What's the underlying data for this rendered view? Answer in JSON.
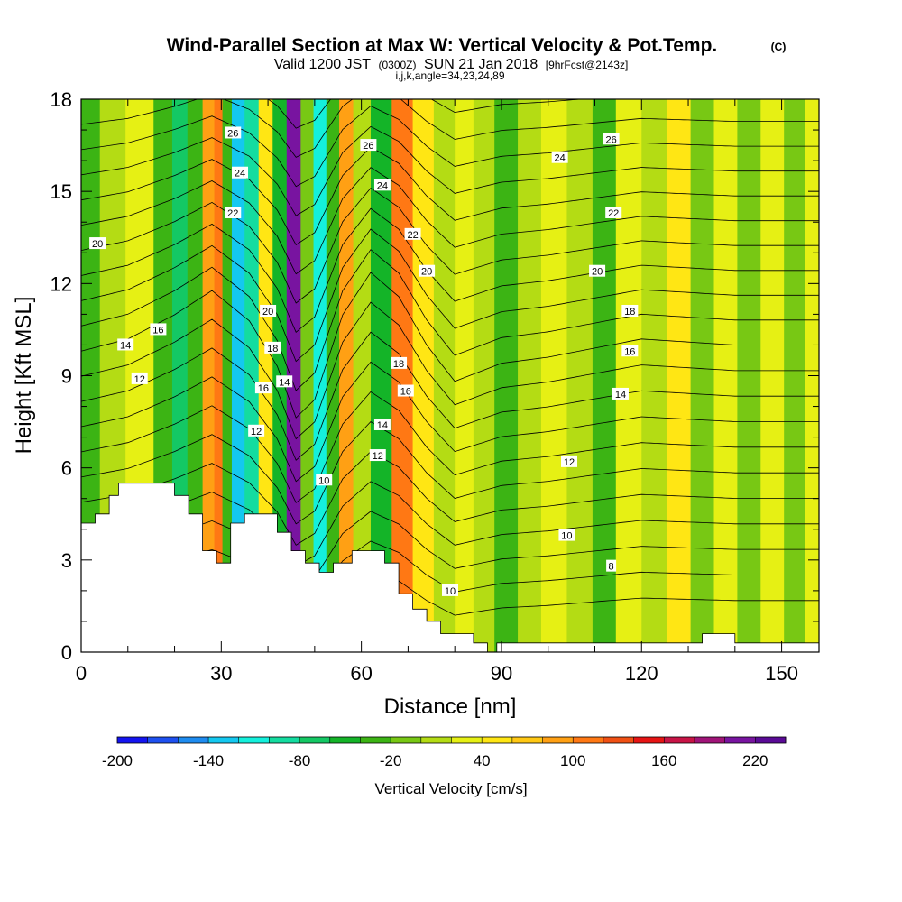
{
  "chart_data": {
    "type": "heatmap",
    "title": "Wind-Parallel Section at Max W: Vertical Velocity & Pot.Temp.",
    "title_suffix": "(C)",
    "subtitle": {
      "a": "Valid 1200 JST",
      "b": "(0300Z)",
      "c": "SUN 21 Jan 2018",
      "d": "[9hrFcst@2143z]"
    },
    "subtitle2": "i,j,k,angle=34,23,24,89",
    "xlabel": "Distance [nm]",
    "ylabel": "Height [Kft MSL]",
    "xlim": [
      0,
      158
    ],
    "ylim": [
      0,
      18
    ],
    "x_ticks": [
      "0",
      "30",
      "60",
      "90",
      "120",
      "150"
    ],
    "y_ticks": [
      "0",
      "3",
      "6",
      "9",
      "12",
      "15",
      "18"
    ],
    "colorbar": {
      "label": "Vertical Velocity [cm/s]",
      "min": -200,
      "max": 240,
      "step": 20,
      "tick_labels": [
        "-200",
        "-140",
        "-80",
        "-20",
        "40",
        "100",
        "160",
        "220"
      ],
      "colors": [
        "#1414f0",
        "#1e50f0",
        "#1e8cf0",
        "#14c8f0",
        "#14f0dc",
        "#14dca0",
        "#14c864",
        "#14b428",
        "#3cb414",
        "#78c814",
        "#b4dc14",
        "#e6f014",
        "#ffe614",
        "#ffc814",
        "#ffa014",
        "#ff7814",
        "#f05014",
        "#e61414",
        "#c81446",
        "#a01478",
        "#7814a0",
        "#5a0a96"
      ]
    },
    "w_columns": [
      {
        "x": 2,
        "w": -40
      },
      {
        "x": 6,
        "w": 10
      },
      {
        "x": 13,
        "w": 20
      },
      {
        "x": 18,
        "w": -40
      },
      {
        "x": 21,
        "w": -80
      },
      {
        "x": 24.5,
        "w": -40
      },
      {
        "x": 27.5,
        "w": 80
      },
      {
        "x": 29.5,
        "w": 100
      },
      {
        "x": 31,
        "w": -40
      },
      {
        "x": 33.5,
        "w": -130
      },
      {
        "x": 36.5,
        "w": -100
      },
      {
        "x": 39.5,
        "w": 40
      },
      {
        "x": 42.5,
        "w": -60
      },
      {
        "x": 45.5,
        "w": 200
      },
      {
        "x": 48.5,
        "w": -20
      },
      {
        "x": 51,
        "w": -110
      },
      {
        "x": 54,
        "w": -30
      },
      {
        "x": 56.5,
        "w": 80
      },
      {
        "x": 60,
        "w": 0
      },
      {
        "x": 64,
        "w": -50
      },
      {
        "x": 69,
        "w": 100
      },
      {
        "x": 73,
        "w": 50
      },
      {
        "x": 78,
        "w": 0
      },
      {
        "x": 82,
        "w": 30
      },
      {
        "x": 86,
        "w": 0
      },
      {
        "x": 91,
        "w": -30
      },
      {
        "x": 96,
        "w": 10
      },
      {
        "x": 101,
        "w": 30
      },
      {
        "x": 107,
        "w": 0
      },
      {
        "x": 112,
        "w": -40
      },
      {
        "x": 117,
        "w": 20
      },
      {
        "x": 123,
        "w": 0
      },
      {
        "x": 128,
        "w": 40
      },
      {
        "x": 133,
        "w": -10
      },
      {
        "x": 138,
        "w": 20
      },
      {
        "x": 143,
        "w": -20
      },
      {
        "x": 148,
        "w": 30
      },
      {
        "x": 153,
        "w": -10
      },
      {
        "x": 157,
        "w": 20
      }
    ],
    "terrain": [
      [
        0,
        4.2
      ],
      [
        3,
        4.2
      ],
      [
        3,
        4.5
      ],
      [
        6,
        4.5
      ],
      [
        6,
        5.1
      ],
      [
        8,
        5.1
      ],
      [
        8,
        5.5
      ],
      [
        20,
        5.5
      ],
      [
        20,
        5.1
      ],
      [
        23,
        5.1
      ],
      [
        23,
        4.5
      ],
      [
        26,
        4.5
      ],
      [
        26,
        3.3
      ],
      [
        29,
        3.3
      ],
      [
        29,
        2.9
      ],
      [
        32,
        2.9
      ],
      [
        32,
        4.2
      ],
      [
        35,
        4.2
      ],
      [
        35,
        4.5
      ],
      [
        42,
        4.5
      ],
      [
        42,
        3.9
      ],
      [
        45,
        3.9
      ],
      [
        45,
        3.3
      ],
      [
        48,
        3.3
      ],
      [
        48,
        2.9
      ],
      [
        51,
        2.9
      ],
      [
        51,
        2.6
      ],
      [
        54,
        2.6
      ],
      [
        54,
        2.9
      ],
      [
        58,
        2.9
      ],
      [
        58,
        3.3
      ],
      [
        65,
        3.3
      ],
      [
        65,
        2.9
      ],
      [
        68,
        2.9
      ],
      [
        68,
        1.9
      ],
      [
        71,
        1.9
      ],
      [
        71,
        1.4
      ],
      [
        74,
        1.4
      ],
      [
        74,
        1.0
      ],
      [
        77,
        1.0
      ],
      [
        77,
        0.6
      ],
      [
        84,
        0.6
      ],
      [
        84,
        0.3
      ],
      [
        87,
        0.3
      ],
      [
        87,
        0.0
      ],
      [
        89,
        0.0
      ],
      [
        89,
        0.3
      ],
      [
        133,
        0.3
      ],
      [
        133,
        0.6
      ],
      [
        140,
        0.6
      ],
      [
        140,
        0.3
      ],
      [
        158,
        0.3
      ]
    ],
    "theta_levels": [
      8,
      9,
      10,
      11,
      12,
      13,
      14,
      15,
      16,
      17,
      18,
      19,
      20,
      21,
      22,
      23,
      24,
      25,
      26,
      27,
      28
    ],
    "theta_profile": {
      "x": [
        0,
        10,
        20,
        28,
        36,
        42,
        46,
        50,
        56,
        62,
        68,
        74,
        80,
        90,
        100,
        110,
        120,
        130,
        140,
        150,
        158
      ],
      "dy": [
        0,
        0.4,
        1.2,
        2.0,
        1.0,
        -0.5,
        -2.2,
        -1.6,
        1.2,
        2.6,
        1.8,
        0.2,
        -1.0,
        -0.4,
        -0.2,
        0.1,
        0.4,
        0.3,
        0.2,
        0.2,
        0.2
      ]
    },
    "contour_labels": [
      {
        "v": "26",
        "x": 32.5,
        "y": 16.9
      },
      {
        "v": "24",
        "x": 34,
        "y": 15.6
      },
      {
        "v": "22",
        "x": 32.5,
        "y": 14.3
      },
      {
        "v": "20",
        "x": 3.5,
        "y": 13.3
      },
      {
        "v": "16",
        "x": 16.5,
        "y": 10.5
      },
      {
        "v": "14",
        "x": 9.5,
        "y": 10.0
      },
      {
        "v": "12",
        "x": 12.5,
        "y": 8.9
      },
      {
        "v": "20",
        "x": 40,
        "y": 11.1
      },
      {
        "v": "18",
        "x": 41,
        "y": 9.9
      },
      {
        "v": "16",
        "x": 39,
        "y": 8.6
      },
      {
        "v": "14",
        "x": 43.5,
        "y": 8.8
      },
      {
        "v": "12",
        "x": 37.5,
        "y": 7.2
      },
      {
        "v": "10",
        "x": 52,
        "y": 5.6
      },
      {
        "v": "26",
        "x": 61.5,
        "y": 16.5
      },
      {
        "v": "24",
        "x": 64.5,
        "y": 15.2
      },
      {
        "v": "22",
        "x": 71,
        "y": 13.6
      },
      {
        "v": "20",
        "x": 74,
        "y": 12.4
      },
      {
        "v": "18",
        "x": 68,
        "y": 9.4
      },
      {
        "v": "16",
        "x": 69.5,
        "y": 8.5
      },
      {
        "v": "14",
        "x": 64.5,
        "y": 7.4
      },
      {
        "v": "12",
        "x": 63.5,
        "y": 6.4
      },
      {
        "v": "10",
        "x": 79,
        "y": 2.0
      },
      {
        "v": "26",
        "x": 113.5,
        "y": 16.7
      },
      {
        "v": "24",
        "x": 102.5,
        "y": 16.1
      },
      {
        "v": "22",
        "x": 114,
        "y": 14.3
      },
      {
        "v": "20",
        "x": 110.5,
        "y": 12.4
      },
      {
        "v": "18",
        "x": 117.5,
        "y": 11.1
      },
      {
        "v": "16",
        "x": 117.5,
        "y": 9.8
      },
      {
        "v": "14",
        "x": 115.5,
        "y": 8.4
      },
      {
        "v": "12",
        "x": 104.5,
        "y": 6.2
      },
      {
        "v": "10",
        "x": 104,
        "y": 3.8
      },
      {
        "v": "8",
        "x": 113.5,
        "y": 2.8
      }
    ]
  }
}
